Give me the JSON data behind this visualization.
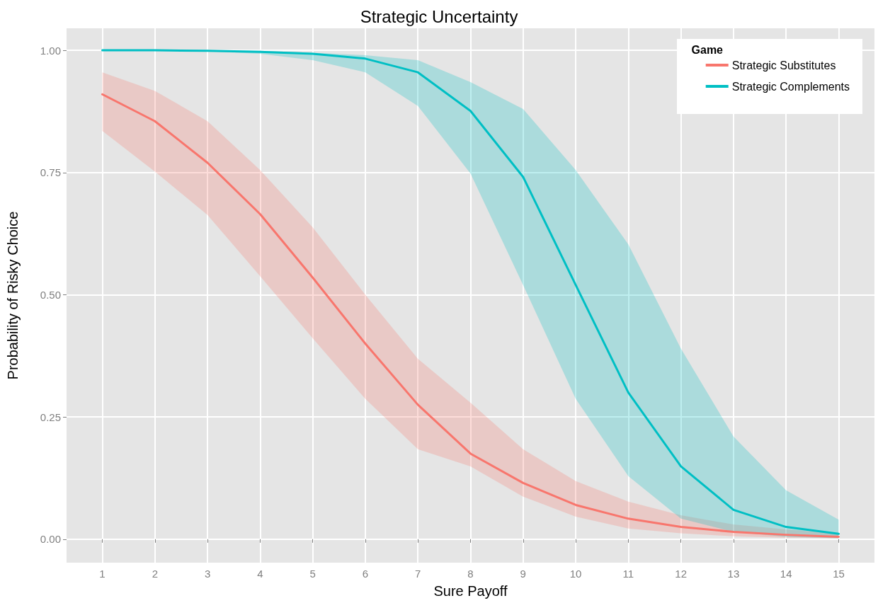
{
  "chart_data": {
    "type": "line",
    "title": "Strategic Uncertainty",
    "xlabel": "Sure Payoff",
    "ylabel": "Probability of Risky Choice",
    "legend_title": "Game",
    "x": [
      1,
      2,
      3,
      4,
      5,
      6,
      7,
      8,
      9,
      10,
      11,
      12,
      13,
      14,
      15
    ],
    "series": [
      {
        "name": "Strategic Substitutes",
        "color": "#f8766d",
        "values": [
          0.91,
          0.855,
          0.77,
          0.665,
          0.535,
          0.4,
          0.275,
          0.175,
          0.115,
          0.07,
          0.042,
          0.025,
          0.015,
          0.009,
          0.005
        ],
        "lower": [
          0.835,
          0.752,
          0.663,
          0.538,
          0.411,
          0.287,
          0.184,
          0.149,
          0.087,
          0.046,
          0.022,
          0.012,
          0.006,
          0.003,
          0.002
        ],
        "upper": [
          0.955,
          0.917,
          0.855,
          0.755,
          0.638,
          0.5,
          0.369,
          0.279,
          0.184,
          0.119,
          0.077,
          0.049,
          0.03,
          0.02,
          0.012
        ]
      },
      {
        "name": "Strategic Complements",
        "color": "#00bfc4",
        "values": [
          1.0,
          1.0,
          0.999,
          0.997,
          0.993,
          0.983,
          0.955,
          0.876,
          0.741,
          0.52,
          0.3,
          0.149,
          0.06,
          0.025,
          0.011
        ],
        "lower": [
          1.0,
          0.999,
          0.998,
          0.993,
          0.98,
          0.955,
          0.886,
          0.748,
          0.52,
          0.287,
          0.129,
          0.042,
          0.015,
          0.005,
          0.002
        ],
        "upper": [
          1.0,
          1.0,
          1.0,
          0.999,
          0.995,
          0.99,
          0.98,
          0.935,
          0.88,
          0.755,
          0.603,
          0.39,
          0.21,
          0.1,
          0.04
        ]
      }
    ],
    "xlim": [
      0.32,
      15.68
    ],
    "xticks": [
      1,
      2,
      3,
      4,
      5,
      6,
      7,
      8,
      9,
      10,
      11,
      12,
      13,
      14,
      15
    ],
    "ylim": [
      -0.048,
      1.045
    ],
    "yticks": [
      {
        "value": 0,
        "label": "0.00"
      },
      {
        "value": 0.25,
        "label": "0.25"
      },
      {
        "value": 0.5,
        "label": "0.50"
      },
      {
        "value": 0.75,
        "label": "0.75"
      },
      {
        "value": 1,
        "label": "1.00"
      }
    ],
    "grid": true,
    "legend": "top right",
    "marker": "none",
    "line_style": "solid"
  }
}
